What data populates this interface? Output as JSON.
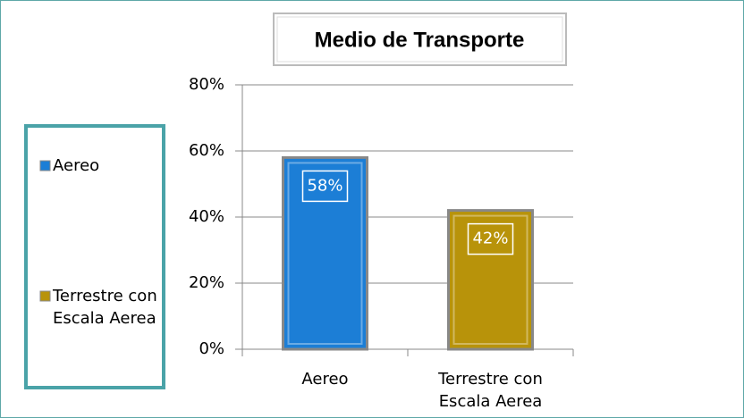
{
  "chart_data": {
    "type": "bar",
    "title": "Medio de Transporte",
    "categories": [
      "Aereo",
      "Terrestre con Escala Aerea"
    ],
    "values": [
      58,
      42
    ],
    "value_labels": [
      "58%",
      "42%"
    ],
    "colors": [
      "#1c7ed6",
      "#b8930a"
    ],
    "ylim": [
      0,
      80
    ],
    "yticks": [
      {
        "value": 0,
        "label": "0%"
      },
      {
        "value": 20,
        "label": "20%"
      },
      {
        "value": 40,
        "label": "40%"
      },
      {
        "value": 60,
        "label": "60%"
      },
      {
        "value": 80,
        "label": "80%"
      }
    ],
    "grid": true,
    "legend": "left"
  }
}
